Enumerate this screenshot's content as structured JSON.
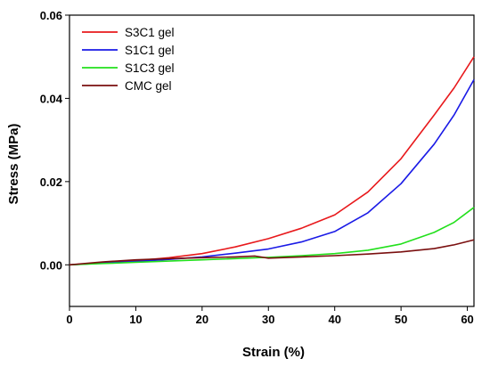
{
  "chart_data": {
    "type": "line",
    "title": "",
    "xlabel": "Strain (%)",
    "ylabel": "Stress (MPa)",
    "xlim": [
      0,
      61
    ],
    "ylim": [
      -0.01,
      0.06
    ],
    "xticks": [
      0,
      10,
      20,
      30,
      40,
      50,
      60
    ],
    "yticks": [
      0.0,
      0.02,
      0.04,
      0.06
    ],
    "ytick_labels": [
      "0.00",
      "0.02",
      "0.04",
      "0.06"
    ],
    "grid": false,
    "legend_position": "top-left",
    "series": [
      {
        "name": "S3C1 gel",
        "color": "#e8191c",
        "x": [
          0,
          5,
          10,
          15,
          20,
          25,
          30,
          35,
          40,
          45,
          50,
          55,
          58,
          61
        ],
        "y": [
          0.0,
          0.0005,
          0.001,
          0.0017,
          0.0027,
          0.0043,
          0.0063,
          0.0088,
          0.012,
          0.0175,
          0.0255,
          0.036,
          0.0425,
          0.05
        ]
      },
      {
        "name": "S1C1 gel",
        "color": "#1a1ae6",
        "x": [
          0,
          5,
          10,
          15,
          20,
          25,
          30,
          35,
          40,
          45,
          50,
          55,
          58,
          61
        ],
        "y": [
          0.0,
          0.0004,
          0.0008,
          0.0013,
          0.0019,
          0.0028,
          0.0038,
          0.0055,
          0.008,
          0.0125,
          0.0195,
          0.029,
          0.036,
          0.0445
        ]
      },
      {
        "name": "S1C3 gel",
        "color": "#22e01c",
        "x": [
          0,
          5,
          10,
          15,
          20,
          25,
          30,
          35,
          40,
          45,
          50,
          55,
          58,
          61
        ],
        "y": [
          0.0,
          0.0003,
          0.0006,
          0.0009,
          0.0012,
          0.0015,
          0.0018,
          0.0022,
          0.0027,
          0.0035,
          0.005,
          0.0078,
          0.0102,
          0.0138
        ]
      },
      {
        "name": "CMC gel",
        "color": "#7a0f0f",
        "x": [
          0,
          5,
          10,
          15,
          20,
          25,
          28,
          30,
          35,
          40,
          45,
          50,
          55,
          58,
          61
        ],
        "y": [
          0.0,
          0.0007,
          0.0012,
          0.0015,
          0.0017,
          0.0019,
          0.0021,
          0.0016,
          0.0019,
          0.0022,
          0.0026,
          0.0031,
          0.0039,
          0.0048,
          0.006
        ]
      }
    ]
  }
}
